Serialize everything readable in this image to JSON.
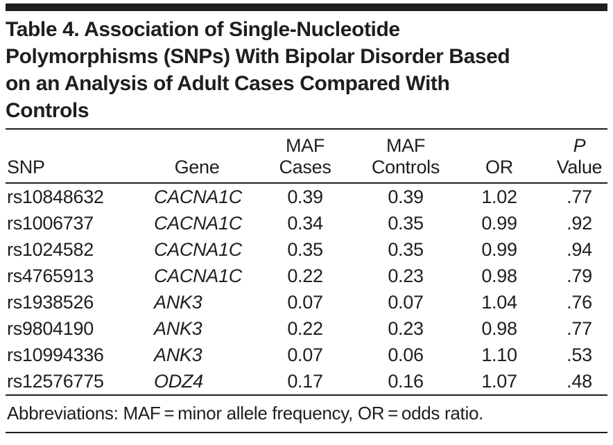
{
  "table": {
    "title_lines": [
      "Table 4. Association of Single-Nucleotide",
      "Polymorphisms (SNPs) With Bipolar Disorder Based",
      "on an Analysis of Adult Cases Compared With",
      "Controls"
    ],
    "columns": [
      {
        "id": "snp",
        "line1": "",
        "line2": "SNP"
      },
      {
        "id": "gene",
        "line1": "",
        "line2": "Gene"
      },
      {
        "id": "maf_cases",
        "line1": "MAF",
        "line2": "Cases"
      },
      {
        "id": "maf_controls",
        "line1": "MAF",
        "line2": "Controls"
      },
      {
        "id": "or",
        "line1": "",
        "line2": "OR"
      },
      {
        "id": "p",
        "line1": "P",
        "line2": "Value"
      }
    ],
    "rows": [
      {
        "snp": "rs10848632",
        "gene": "CACNA1C",
        "maf_cases": "0.39",
        "maf_controls": "0.39",
        "or": "1.02",
        "p": ".77"
      },
      {
        "snp": "rs1006737",
        "gene": "CACNA1C",
        "maf_cases": "0.34",
        "maf_controls": "0.35",
        "or": "0.99",
        "p": ".92"
      },
      {
        "snp": "rs1024582",
        "gene": "CACNA1C",
        "maf_cases": "0.35",
        "maf_controls": "0.35",
        "or": "0.99",
        "p": ".94"
      },
      {
        "snp": "rs4765913",
        "gene": "CACNA1C",
        "maf_cases": "0.22",
        "maf_controls": "0.23",
        "or": "0.98",
        "p": ".79"
      },
      {
        "snp": "rs1938526",
        "gene": "ANK3",
        "maf_cases": "0.07",
        "maf_controls": "0.07",
        "or": "1.04",
        "p": ".76"
      },
      {
        "snp": "rs9804190",
        "gene": "ANK3",
        "maf_cases": "0.22",
        "maf_controls": "0.23",
        "or": "0.98",
        "p": ".77"
      },
      {
        "snp": "rs10994336",
        "gene": "ANK3",
        "maf_cases": "0.07",
        "maf_controls": "0.06",
        "or": "1.10",
        "p": ".53"
      },
      {
        "snp": "rs12576775",
        "gene": "ODZ4",
        "maf_cases": "0.17",
        "maf_controls": "0.16",
        "or": "1.07",
        "p": ".48"
      }
    ],
    "footnote": "Abbreviations: MAF = minor allele frequency, OR = odds ratio.",
    "colors": {
      "text": "#1e1e1c",
      "rule": "#1e1e1c",
      "background": "#ffffff"
    }
  }
}
